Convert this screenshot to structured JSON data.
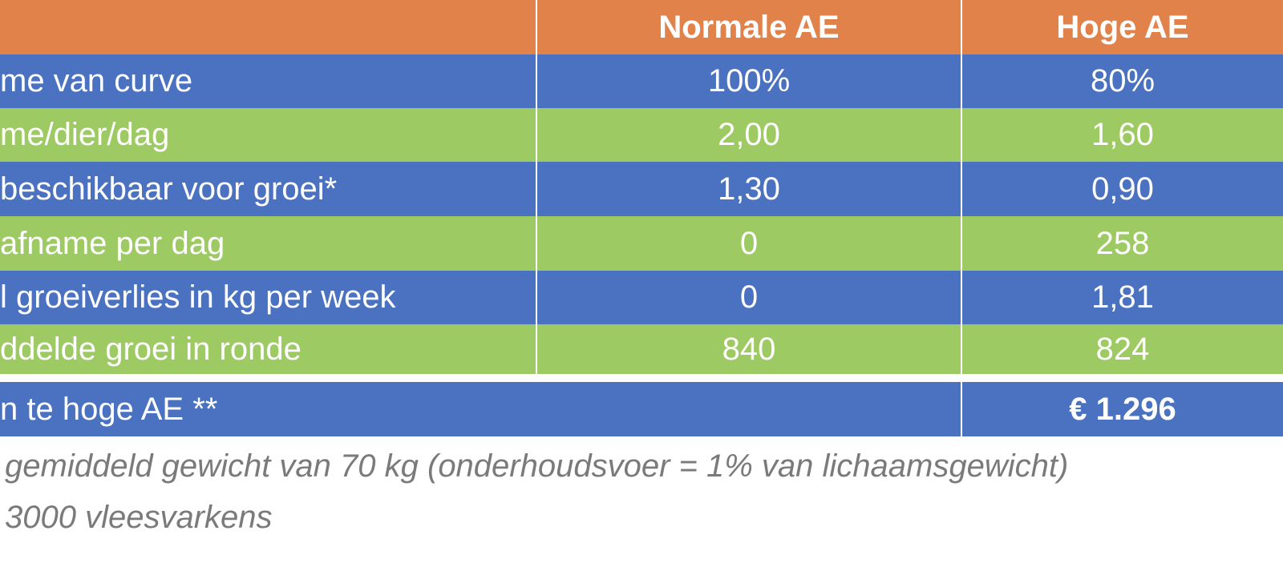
{
  "table": {
    "header": [
      "Normale AE",
      "Hoge AE"
    ],
    "rows": [
      [
        "me van curve",
        "100%",
        "80%"
      ],
      [
        "me/dier/dag",
        "2,00",
        "1,60"
      ],
      [
        "beschikbaar voor groei*",
        "1,30",
        "0,90"
      ],
      [
        "afname per dag",
        "0",
        "258"
      ],
      [
        "l groeiverlies in kg per week",
        "0",
        "1,81"
      ],
      [
        "ddelde groei in ronde",
        "840",
        "824"
      ]
    ],
    "total": [
      "n te hoge AE **",
      "€ 1.296"
    ]
  },
  "footnotes": [
    "gemiddeld gewicht van 70 kg (onderhoudsvoer = 1% van lichaamsgewicht)",
    "3000 vleesvarkens"
  ]
}
